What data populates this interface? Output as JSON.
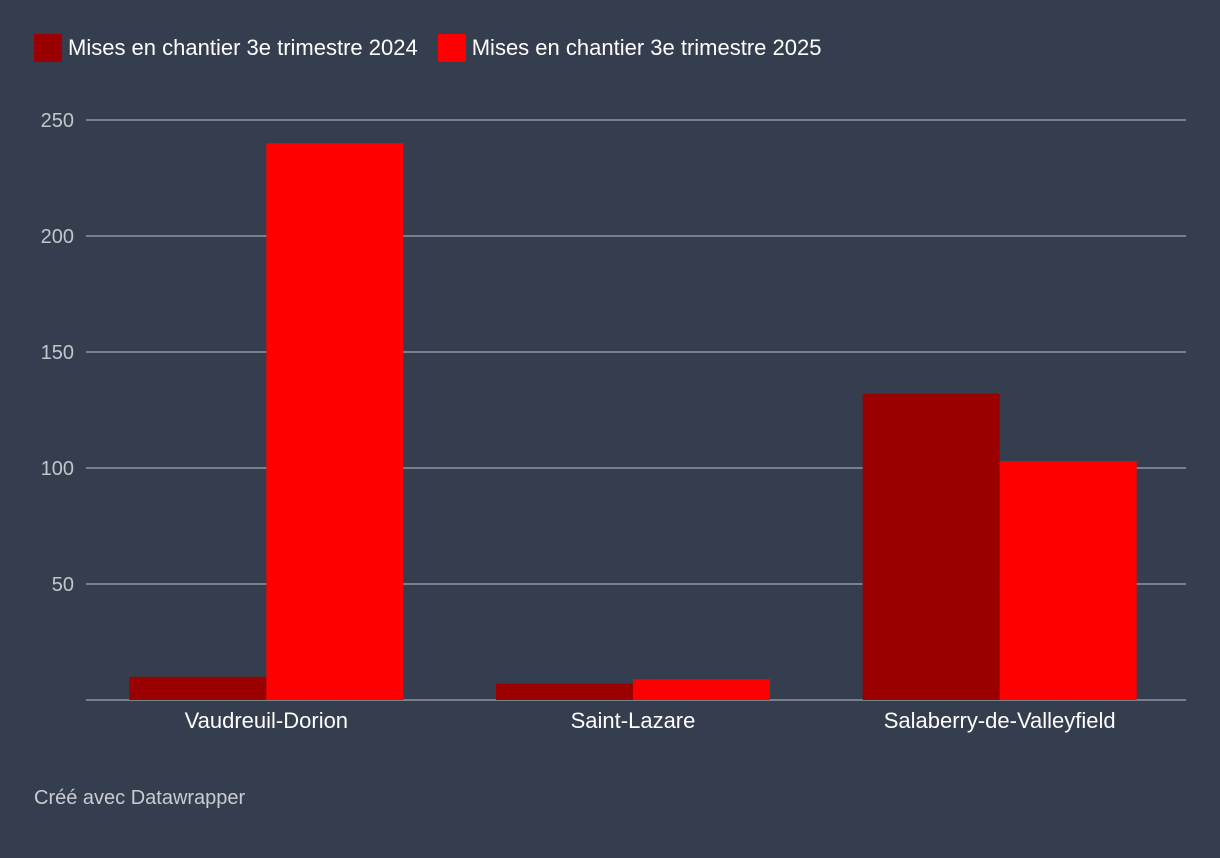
{
  "colors": {
    "background": "#343e4e",
    "grid": "#8f959e",
    "tick_text": "#c3c6cb",
    "series_2024": "#9b0000",
    "series_2025": "#ff0000"
  },
  "legend": {
    "items": [
      {
        "label": "Mises en chantier 3e trimestre 2024",
        "color": "#9b0000"
      },
      {
        "label": "Mises en chantier 3e trimestre 2025",
        "color": "#ff0000"
      }
    ]
  },
  "footer": {
    "text": "Créé avec Datawrapper"
  },
  "chart_data": {
    "type": "bar",
    "categories": [
      "Vaudreuil-Dorion",
      "Saint-Lazare",
      "Salaberry-de-Valleyfield"
    ],
    "series": [
      {
        "name": "Mises en chantier 3e trimestre 2024",
        "values": [
          10,
          7,
          132
        ]
      },
      {
        "name": "Mises en chantier 3e trimestre 2025",
        "values": [
          240,
          9,
          103
        ]
      }
    ],
    "y_ticks": [
      50,
      100,
      150,
      200,
      250
    ],
    "ylim": [
      0,
      250
    ],
    "grid": true,
    "legend_position": "top-left"
  }
}
